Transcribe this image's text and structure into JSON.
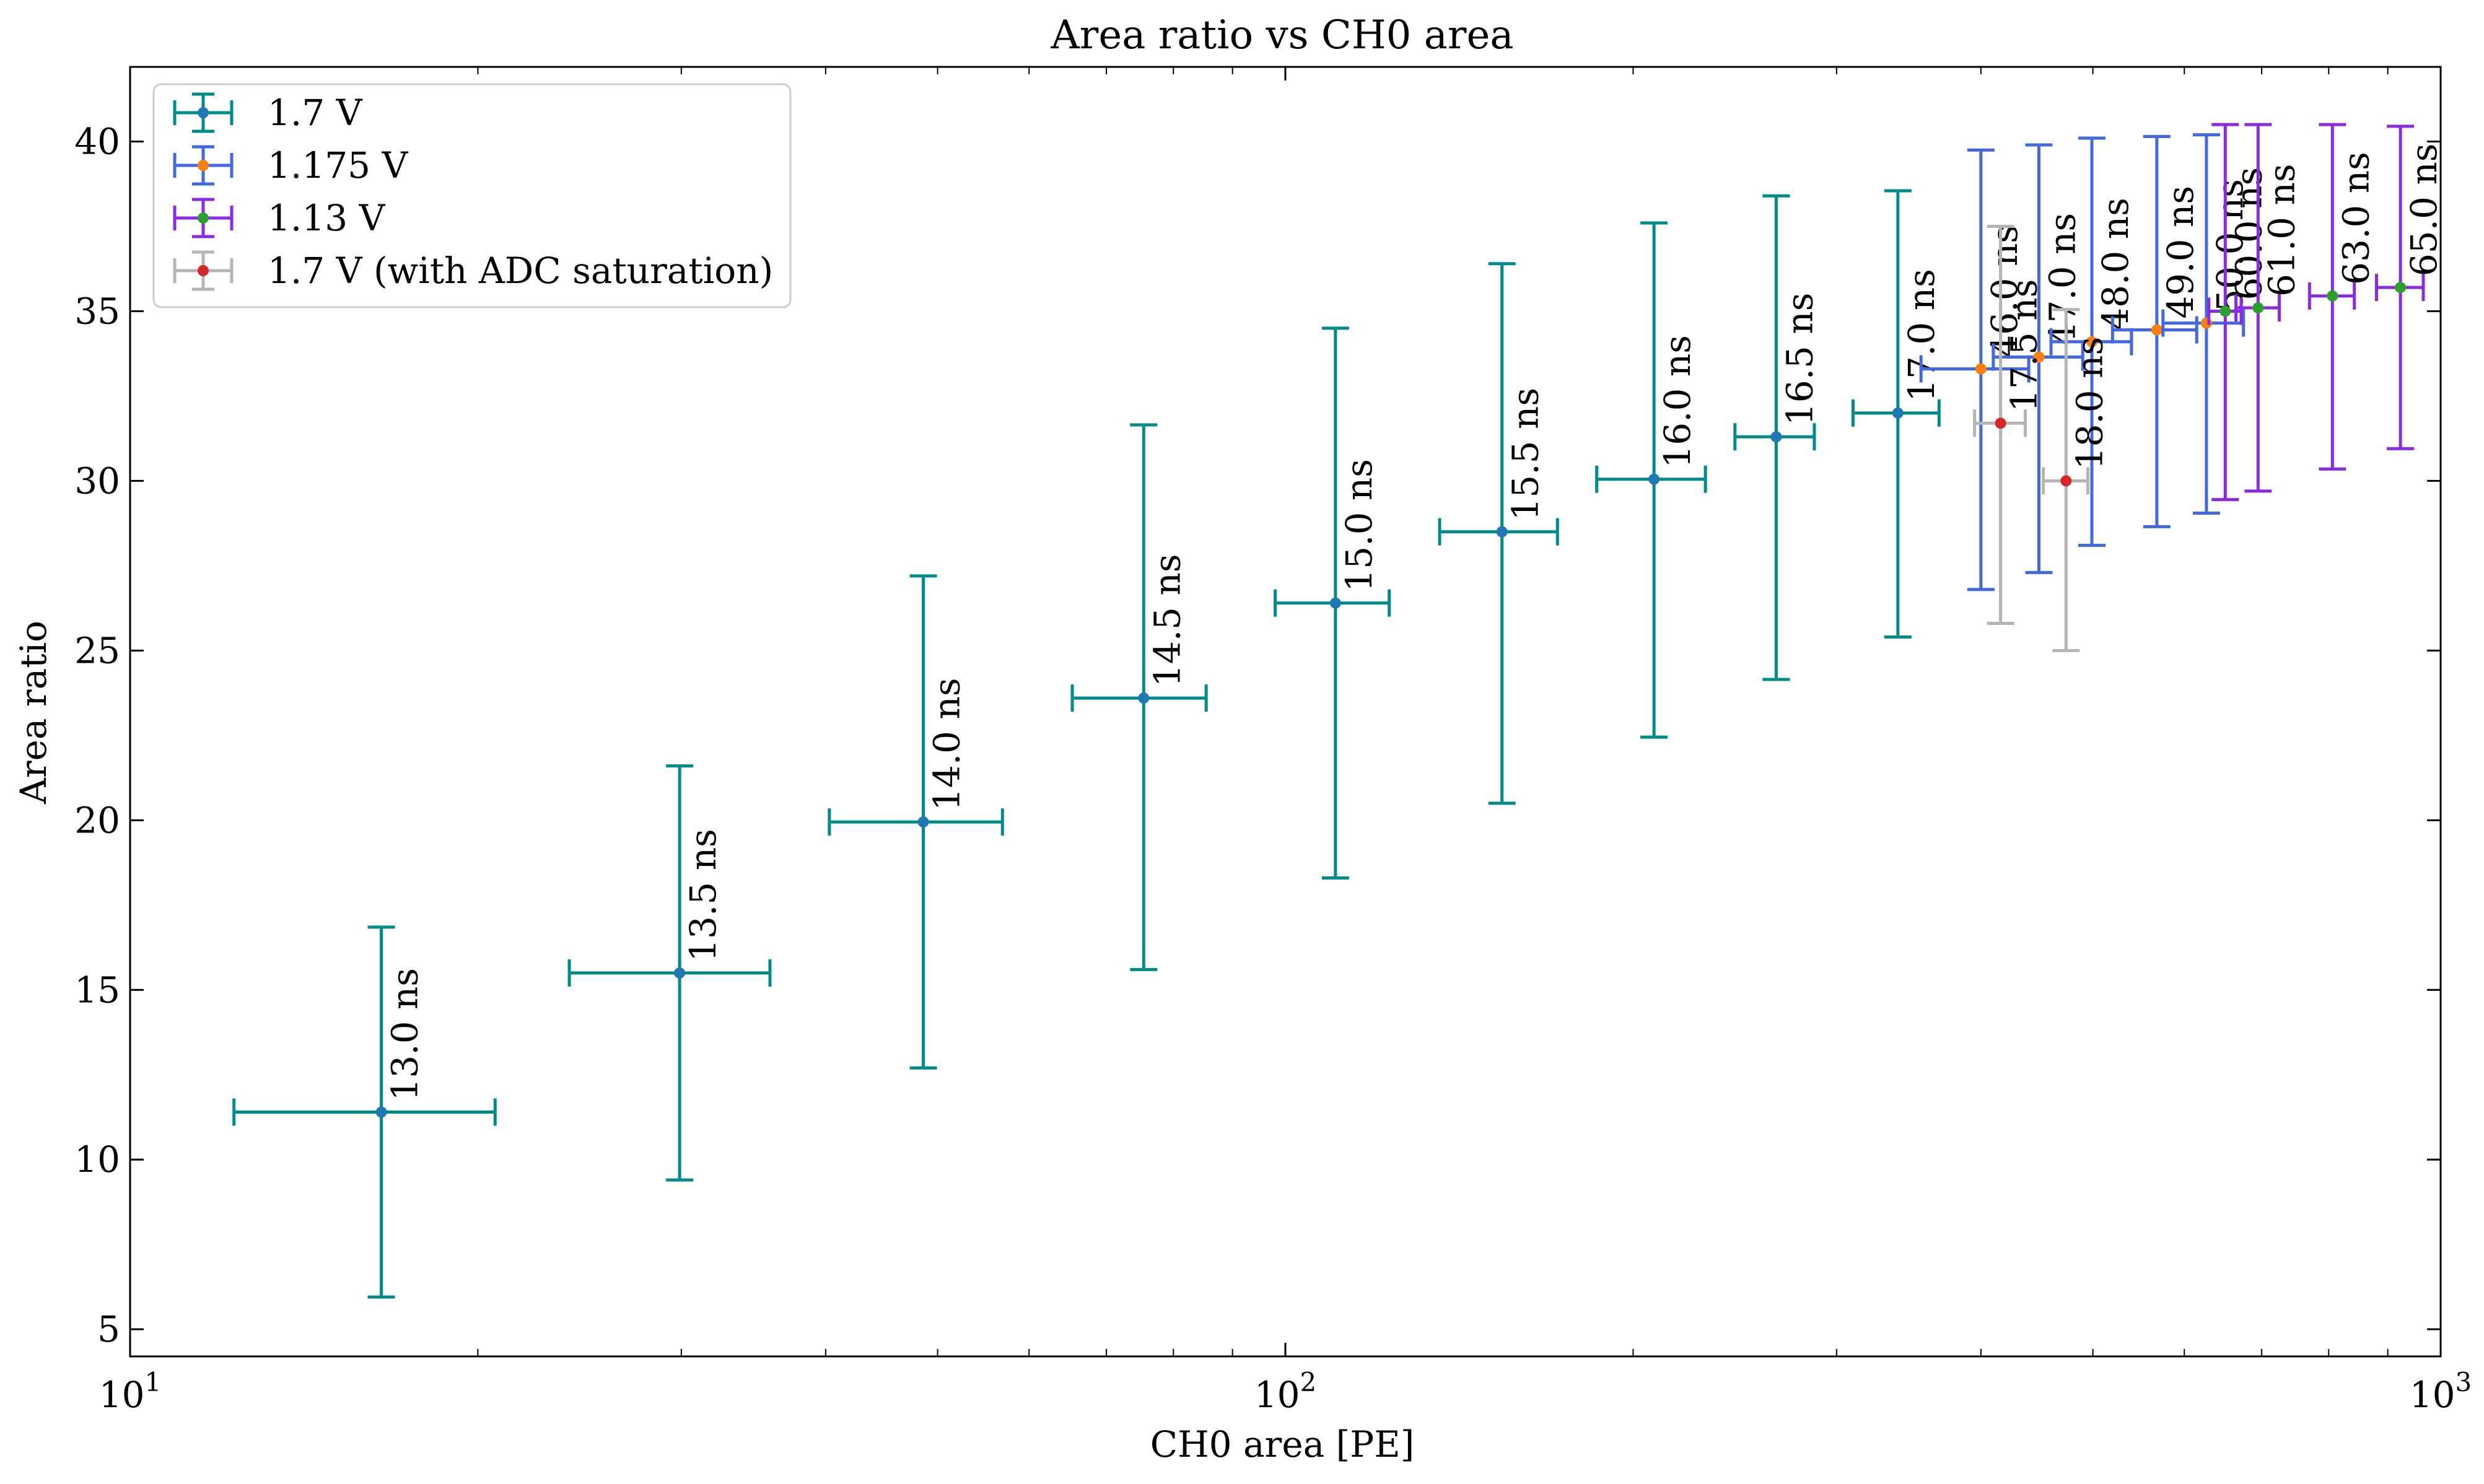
{
  "chart_data": {
    "type": "scatter",
    "title": "Area ratio vs CH0 area",
    "xlabel": "CH0 area [PE]",
    "ylabel": "Area ratio",
    "xscale": "log",
    "xlim": [
      10,
      1000
    ],
    "ylim": [
      4.2,
      42.2
    ],
    "x_major_ticks": [
      10,
      100,
      1000
    ],
    "x_major_tick_labels": [
      {
        "base": "10",
        "exp": "1"
      },
      {
        "base": "10",
        "exp": "2"
      },
      {
        "base": "10",
        "exp": "3"
      }
    ],
    "y_ticks": [
      5,
      10,
      15,
      20,
      25,
      30,
      35,
      40
    ],
    "y_tick_labels": [
      "5",
      "10",
      "15",
      "20",
      "25",
      "30",
      "35",
      "40"
    ],
    "grid": false,
    "legend_placement": "top-left",
    "series": [
      {
        "name": "1.7 V",
        "marker_color": "#1f77b4",
        "errorbar_color": "#008b8b",
        "points": [
          {
            "x": 16.5,
            "xlo": 12.3,
            "xhi": 20.7,
            "y": 11.4,
            "ylo": 5.95,
            "yhi": 16.85,
            "label": "13.0 ns"
          },
          {
            "x": 29.9,
            "xlo": 24.0,
            "xhi": 35.8,
            "y": 15.5,
            "ylo": 9.4,
            "yhi": 21.6,
            "label": "13.5 ns"
          },
          {
            "x": 48.6,
            "xlo": 40.3,
            "xhi": 56.9,
            "y": 19.95,
            "ylo": 12.7,
            "yhi": 27.2,
            "label": "14.0 ns"
          },
          {
            "x": 75.4,
            "xlo": 65.4,
            "xhi": 85.4,
            "y": 23.6,
            "ylo": 15.6,
            "yhi": 31.65,
            "label": "14.5 ns"
          },
          {
            "x": 110.5,
            "xlo": 98.0,
            "xhi": 123.0,
            "y": 26.4,
            "ylo": 18.3,
            "yhi": 34.5,
            "label": "15.0 ns"
          },
          {
            "x": 154.0,
            "xlo": 136.0,
            "xhi": 172.0,
            "y": 28.5,
            "ylo": 20.5,
            "yhi": 36.4,
            "label": "15.5 ns"
          },
          {
            "x": 208.5,
            "xlo": 186.0,
            "xhi": 231.0,
            "y": 30.05,
            "ylo": 22.45,
            "yhi": 37.6,
            "label": "16.0 ns"
          },
          {
            "x": 266.0,
            "xlo": 245.0,
            "xhi": 287.0,
            "y": 31.3,
            "ylo": 24.15,
            "yhi": 38.4,
            "label": "16.5 ns"
          },
          {
            "x": 339.0,
            "xlo": 310.0,
            "xhi": 368.0,
            "y": 32.0,
            "ylo": 25.4,
            "yhi": 38.55,
            "label": "17.0 ns"
          }
        ]
      },
      {
        "name": "1.175 V",
        "marker_color": "#ff7f0e",
        "errorbar_color": "#4169e1",
        "points": [
          {
            "x": 400.0,
            "xlo": 355.0,
            "xhi": 440.0,
            "y": 33.3,
            "ylo": 26.8,
            "yhi": 39.75,
            "label": "46.0 ns"
          },
          {
            "x": 449.0,
            "xlo": 410.0,
            "xhi": 490.0,
            "y": 33.65,
            "ylo": 27.3,
            "yhi": 39.9,
            "label": "47.0 ns"
          },
          {
            "x": 499.0,
            "xlo": 460.0,
            "xhi": 540.0,
            "y": 34.1,
            "ylo": 28.1,
            "yhi": 40.1,
            "label": "48.0 ns"
          },
          {
            "x": 568.0,
            "xlo": 520.0,
            "xhi": 615.0,
            "y": 34.45,
            "ylo": 28.65,
            "yhi": 40.15,
            "label": "49.0 ns"
          },
          {
            "x": 627.0,
            "xlo": 575.0,
            "xhi": 675.0,
            "y": 34.65,
            "ylo": 29.05,
            "yhi": 40.2,
            "label": "50.0 ns"
          }
        ]
      },
      {
        "name": "1.13 V",
        "marker_color": "#2ca02c",
        "errorbar_color": "#8a2be2",
        "points": [
          {
            "x": 651.0,
            "xlo": 630.0,
            "xhi": 672.0,
            "y": 35.0,
            "ylo": 29.45,
            "yhi": 40.5,
            "label": "60.0 ns"
          },
          {
            "x": 695.0,
            "xlo": 665.0,
            "xhi": 725.0,
            "y": 35.1,
            "ylo": 29.7,
            "yhi": 40.5,
            "label": "61.0 ns"
          },
          {
            "x": 806.0,
            "xlo": 770.0,
            "xhi": 842.0,
            "y": 35.45,
            "ylo": 30.35,
            "yhi": 40.5,
            "label": "63.0 ns"
          },
          {
            "x": 923.0,
            "xlo": 880.0,
            "xhi": 966.0,
            "y": 35.7,
            "ylo": 30.95,
            "yhi": 40.45,
            "label": "65.0 ns"
          }
        ]
      },
      {
        "name": "1.7 V (with ADC saturation)",
        "marker_color": "#d62728",
        "errorbar_color": "#b5b5b5",
        "points": [
          {
            "x": 416.0,
            "xlo": 395.0,
            "xhi": 437.0,
            "y": 31.7,
            "ylo": 25.8,
            "yhi": 37.5,
            "label": "17.5 ns"
          },
          {
            "x": 474.0,
            "xlo": 453.0,
            "xhi": 495.0,
            "y": 30.0,
            "ylo": 25.0,
            "yhi": 35.05,
            "label": "18.0 ns"
          }
        ]
      }
    ]
  }
}
